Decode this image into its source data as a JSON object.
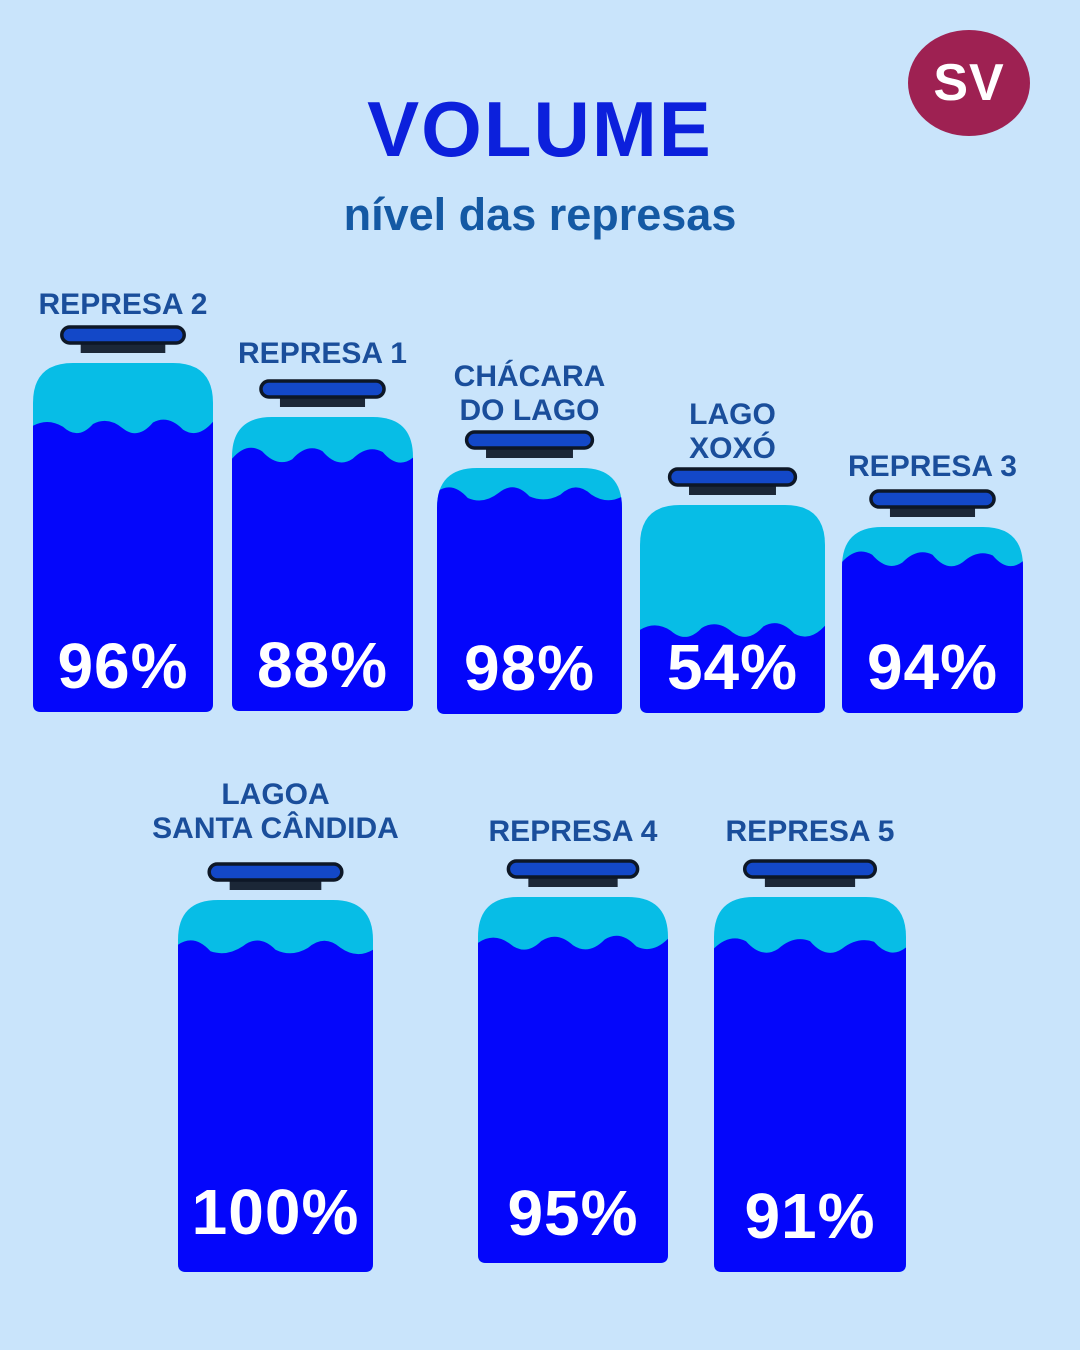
{
  "header": {
    "title": "VOLUME",
    "subtitle": "nível das represas"
  },
  "badge": {
    "text": "SV"
  },
  "palette": {
    "background": "#c9e4fb",
    "title": "#0c20dc",
    "subtitle": "#1459a4",
    "label": "#1a4e9b",
    "water": "#0406fb",
    "bottle_empty": "#07bde6",
    "cap_fill": "#1348c8",
    "cap_dark": "#1b2737",
    "cap_stroke": "#0d1726",
    "badge": "#9e2152",
    "badge_text": "#ffffff",
    "percent_text": "#ffffff"
  },
  "chart_data": {
    "type": "bar",
    "title": "VOLUME",
    "subtitle": "nível das represas",
    "unit": "%",
    "ylim": [
      0,
      100
    ],
    "legend": false,
    "grid": false,
    "categories": [
      "REPRESA 2",
      "REPRESA 1",
      "CHÁCARA DO LAGO",
      "LAGO XOXÓ",
      "REPRESA 3",
      "LAGOA SANTA CÂNDIDA",
      "REPRESA 4",
      "REPRESA 5"
    ],
    "values": [
      96,
      88,
      98,
      54,
      94,
      100,
      95,
      91
    ]
  },
  "reservoirs": [
    {
      "label_lines": [
        "REPRESA 2"
      ],
      "value": 96,
      "value_text": "96%"
    },
    {
      "label_lines": [
        "REPRESA 1"
      ],
      "value": 88,
      "value_text": "88%"
    },
    {
      "label_lines": [
        "CHÁCARA",
        "DO LAGO"
      ],
      "value": 98,
      "value_text": "98%"
    },
    {
      "label_lines": [
        "LAGO",
        "XOXÓ"
      ],
      "value": 54,
      "value_text": "54%"
    },
    {
      "label_lines": [
        "REPRESA 3"
      ],
      "value": 94,
      "value_text": "94%"
    },
    {
      "label_lines": [
        "LAGOA",
        "SANTA CÂNDIDA"
      ],
      "value": 100,
      "value_text": "100%"
    },
    {
      "label_lines": [
        "REPRESA 4"
      ],
      "value": 95,
      "value_text": "95%"
    },
    {
      "label_lines": [
        "REPRESA 5"
      ],
      "value": 91,
      "value_text": "91%"
    }
  ]
}
